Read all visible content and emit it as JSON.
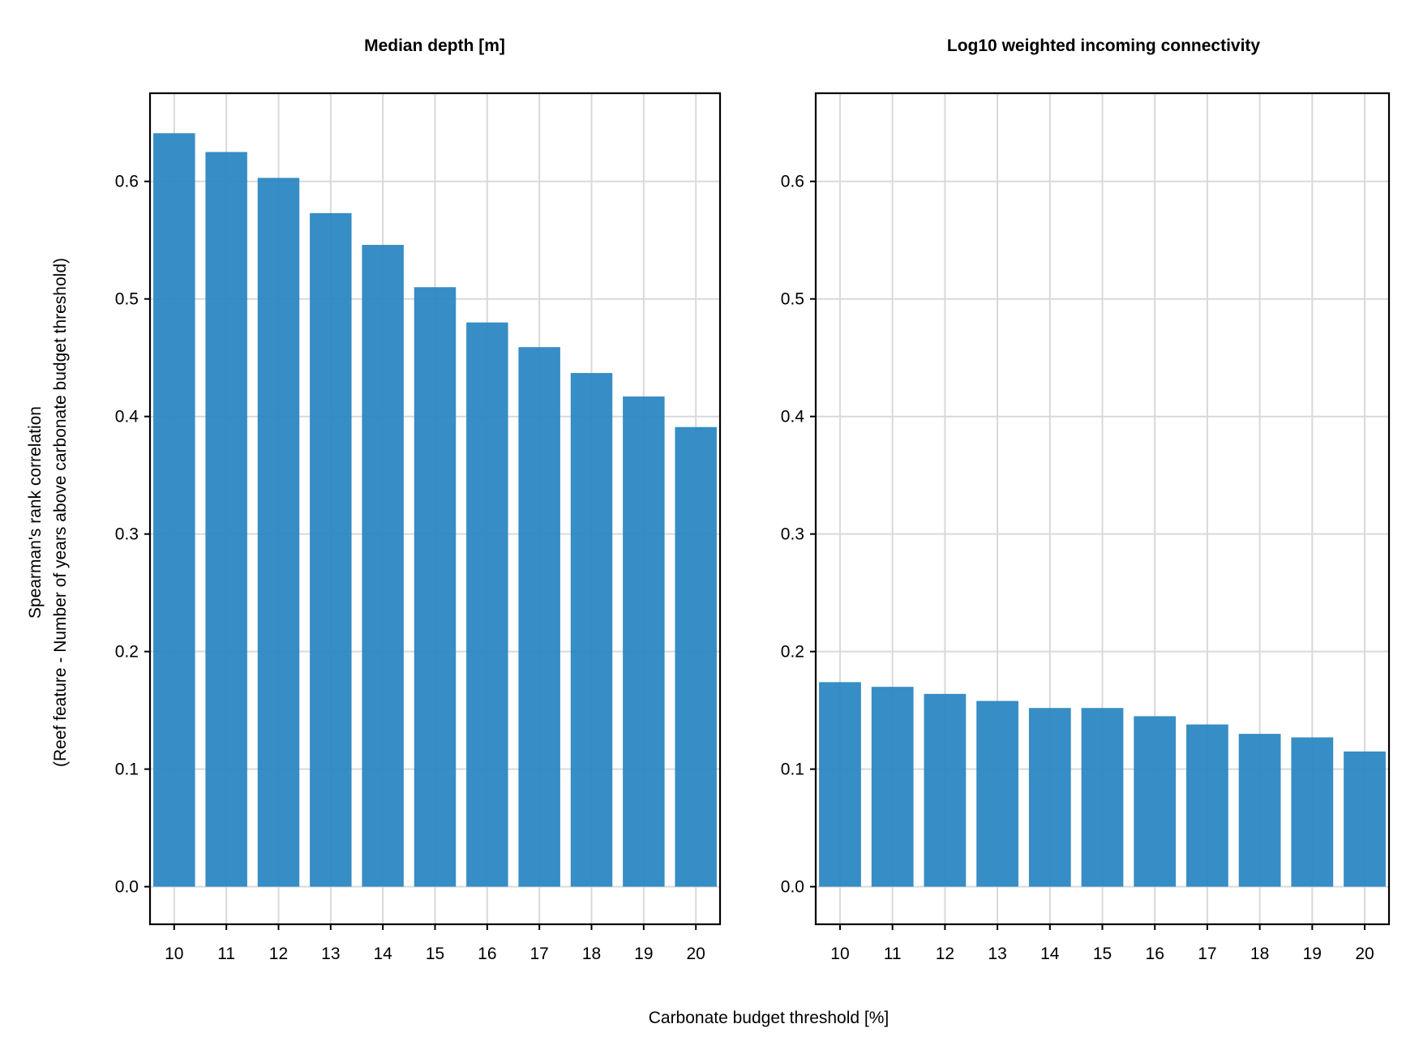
{
  "figure": {
    "xlabel": "Carbonate budget threshold [%]",
    "ylabel_line1": "Spearman's rank correlation",
    "ylabel_line2": "(Reef feature - Number of years above carbonate budget threshold)"
  },
  "chart_data": [
    {
      "type": "bar",
      "title": "Median depth [m]",
      "categories": [
        "10",
        "11",
        "12",
        "13",
        "14",
        "15",
        "16",
        "17",
        "18",
        "19",
        "20"
      ],
      "values": [
        0.641,
        0.625,
        0.603,
        0.573,
        0.546,
        0.51,
        0.48,
        0.459,
        0.437,
        0.417,
        0.391
      ],
      "ylim": [
        -0.032,
        0.675
      ],
      "yticks": [
        0.0,
        0.1,
        0.2,
        0.3,
        0.4,
        0.5,
        0.6
      ],
      "ytick_labels": [
        "0.0",
        "0.1",
        "0.2",
        "0.3",
        "0.4",
        "0.5",
        "0.6"
      ],
      "grid": true,
      "bar_color": "#2c87c2"
    },
    {
      "type": "bar",
      "title": "Log10 weighted incoming connectivity",
      "categories": [
        "10",
        "11",
        "12",
        "13",
        "14",
        "15",
        "16",
        "17",
        "18",
        "19",
        "20"
      ],
      "values": [
        0.174,
        0.17,
        0.164,
        0.158,
        0.152,
        0.152,
        0.145,
        0.138,
        0.13,
        0.127,
        0.115
      ],
      "ylim": [
        -0.032,
        0.675
      ],
      "yticks": [
        0.0,
        0.1,
        0.2,
        0.3,
        0.4,
        0.5,
        0.6
      ],
      "ytick_labels": [
        "0.0",
        "0.1",
        "0.2",
        "0.3",
        "0.4",
        "0.5",
        "0.6"
      ],
      "grid": true,
      "bar_color": "#2c87c2"
    }
  ]
}
